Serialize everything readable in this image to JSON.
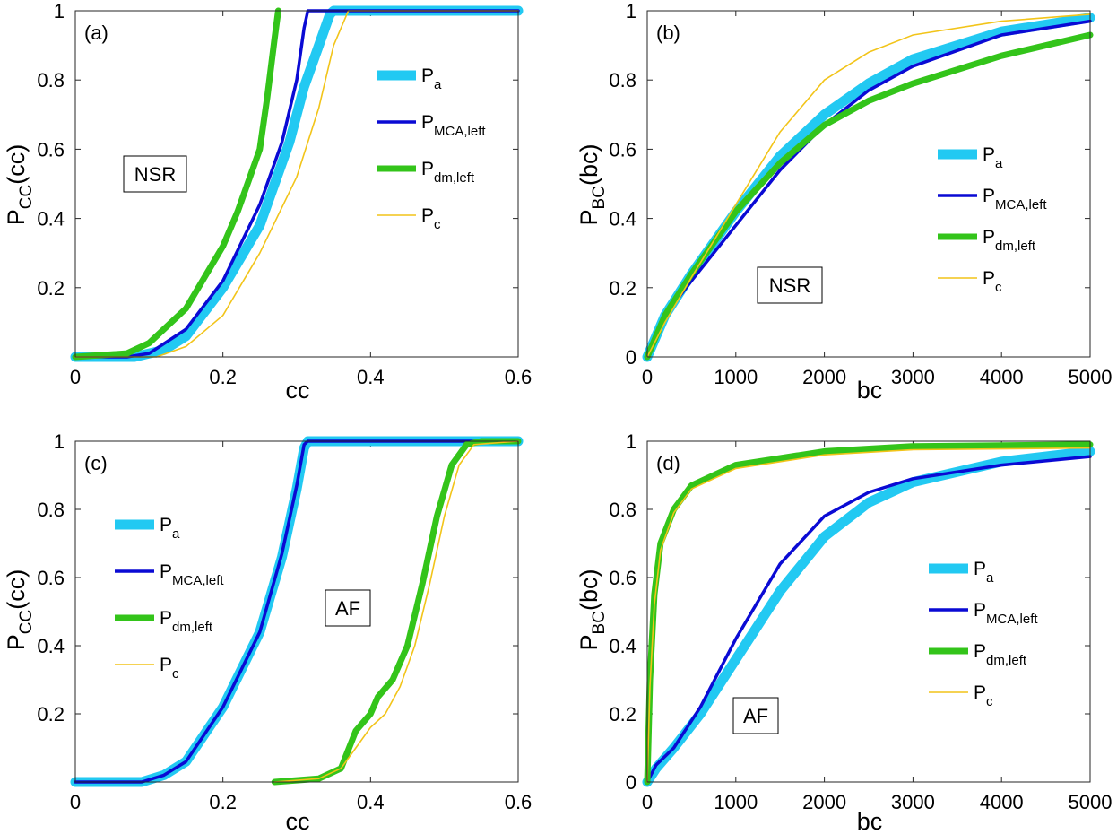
{
  "colors": {
    "Pa": "#22c9f2",
    "Pmca": "#0a0ad4",
    "Pdm": "#33c41a",
    "Pc": "#f2c419",
    "axis": "#262626",
    "background": "#ffffff"
  },
  "chart_data": [
    {
      "type": "line",
      "panel": "(a)",
      "box_label": "NSR",
      "xlabel": "cc",
      "ylabel": "P",
      "ylabel_sub": "CC",
      "ylabel_arg": "(cc)",
      "xlim": [
        0,
        0.6
      ],
      "ylim": [
        0,
        1
      ],
      "xticks": [
        0,
        0.2,
        0.4,
        0.6
      ],
      "xtick_labels": [
        "0",
        "0.2",
        "0.4",
        "0.6"
      ],
      "yticks": [
        0.2,
        0.4,
        0.6,
        0.8,
        1
      ],
      "ytick_labels": [
        "0.2",
        "0.4",
        "0.6",
        "0.8",
        "1"
      ],
      "legend_position": "right-upper",
      "series": [
        {
          "key": "Pa",
          "name": "P",
          "sub": "a",
          "points": [
            [
              0,
              0
            ],
            [
              0.08,
              0
            ],
            [
              0.12,
              0.02
            ],
            [
              0.15,
              0.06
            ],
            [
              0.2,
              0.2
            ],
            [
              0.25,
              0.38
            ],
            [
              0.29,
              0.62
            ],
            [
              0.31,
              0.78
            ],
            [
              0.33,
              0.9
            ],
            [
              0.345,
              0.99
            ],
            [
              0.35,
              1
            ],
            [
              0.6,
              1
            ]
          ]
        },
        {
          "key": "Pmca",
          "name": "P",
          "sub": "MCA,left",
          "points": [
            [
              0,
              0
            ],
            [
              0.07,
              0
            ],
            [
              0.1,
              0.01
            ],
            [
              0.15,
              0.08
            ],
            [
              0.2,
              0.22
            ],
            [
              0.25,
              0.44
            ],
            [
              0.28,
              0.62
            ],
            [
              0.3,
              0.8
            ],
            [
              0.31,
              0.95
            ],
            [
              0.315,
              1
            ],
            [
              0.6,
              1
            ]
          ]
        },
        {
          "key": "Pdm",
          "name": "P",
          "sub": "dm,left",
          "points": [
            [
              0,
              0
            ],
            [
              0.07,
              0.01
            ],
            [
              0.1,
              0.04
            ],
            [
              0.15,
              0.14
            ],
            [
              0.2,
              0.32
            ],
            [
              0.22,
              0.42
            ],
            [
              0.25,
              0.6
            ],
            [
              0.26,
              0.75
            ],
            [
              0.27,
              0.92
            ],
            [
              0.275,
              1
            ]
          ]
        },
        {
          "key": "Pc",
          "name": "P",
          "sub": "c",
          "points": [
            [
              0,
              0
            ],
            [
              0.11,
              0
            ],
            [
              0.15,
              0.03
            ],
            [
              0.2,
              0.12
            ],
            [
              0.25,
              0.3
            ],
            [
              0.3,
              0.52
            ],
            [
              0.33,
              0.72
            ],
            [
              0.35,
              0.9
            ],
            [
              0.37,
              1
            ],
            [
              0.6,
              1
            ]
          ]
        }
      ]
    },
    {
      "type": "line",
      "panel": "(b)",
      "box_label": "NSR",
      "xlabel": "bc",
      "ylabel": "P",
      "ylabel_sub": "BC",
      "ylabel_arg": "(bc)",
      "xlim": [
        0,
        5000
      ],
      "ylim": [
        0,
        1
      ],
      "xticks": [
        0,
        1000,
        2000,
        3000,
        4000,
        5000
      ],
      "xtick_labels": [
        "0",
        "1000",
        "2000",
        "3000",
        "4000",
        "5000"
      ],
      "yticks": [
        0,
        0.2,
        0.4,
        0.6,
        0.8,
        1
      ],
      "ytick_labels": [
        "0",
        "0.2",
        "0.4",
        "0.6",
        "0.8",
        "1"
      ],
      "legend_position": "right-middle",
      "series": [
        {
          "key": "Pa",
          "name": "P",
          "sub": "a",
          "points": [
            [
              0,
              0
            ],
            [
              200,
              0.12
            ],
            [
              500,
              0.24
            ],
            [
              1000,
              0.42
            ],
            [
              1500,
              0.58
            ],
            [
              2000,
              0.7
            ],
            [
              2500,
              0.79
            ],
            [
              3000,
              0.86
            ],
            [
              4000,
              0.94
            ],
            [
              5000,
              0.98
            ]
          ]
        },
        {
          "key": "Pmca",
          "name": "P",
          "sub": "MCA,left",
          "points": [
            [
              0,
              0
            ],
            [
              200,
              0.12
            ],
            [
              500,
              0.22
            ],
            [
              1000,
              0.38
            ],
            [
              1500,
              0.54
            ],
            [
              2000,
              0.67
            ],
            [
              2500,
              0.77
            ],
            [
              3000,
              0.84
            ],
            [
              4000,
              0.93
            ],
            [
              5000,
              0.97
            ]
          ]
        },
        {
          "key": "Pdm",
          "name": "P",
          "sub": "dm,left",
          "points": [
            [
              0,
              0
            ],
            [
              200,
              0.12
            ],
            [
              500,
              0.24
            ],
            [
              1000,
              0.42
            ],
            [
              1500,
              0.56
            ],
            [
              2000,
              0.67
            ],
            [
              2500,
              0.74
            ],
            [
              3000,
              0.79
            ],
            [
              4000,
              0.87
            ],
            [
              5000,
              0.93
            ]
          ]
        },
        {
          "key": "Pc",
          "name": "P",
          "sub": "c",
          "points": [
            [
              0,
              0
            ],
            [
              200,
              0.1
            ],
            [
              500,
              0.23
            ],
            [
              1000,
              0.44
            ],
            [
              1500,
              0.65
            ],
            [
              2000,
              0.8
            ],
            [
              2500,
              0.88
            ],
            [
              3000,
              0.93
            ],
            [
              4000,
              0.97
            ],
            [
              5000,
              0.99
            ]
          ]
        }
      ]
    },
    {
      "type": "line",
      "panel": "(c)",
      "box_label": "AF",
      "xlabel": "cc",
      "ylabel": "P",
      "ylabel_sub": "CC",
      "ylabel_arg": "(cc)",
      "xlim": [
        0,
        0.6
      ],
      "ylim": [
        0,
        1
      ],
      "xticks": [
        0,
        0.2,
        0.4,
        0.6
      ],
      "xtick_labels": [
        "0",
        "0.2",
        "0.4",
        "0.6"
      ],
      "yticks": [
        0.2,
        0.4,
        0.6,
        0.8,
        1
      ],
      "ytick_labels": [
        "0.2",
        "0.4",
        "0.6",
        "0.8",
        "1"
      ],
      "legend_position": "left-middle",
      "series": [
        {
          "key": "Pa",
          "name": "P",
          "sub": "a",
          "points": [
            [
              0,
              0
            ],
            [
              0.09,
              0
            ],
            [
              0.12,
              0.02
            ],
            [
              0.15,
              0.06
            ],
            [
              0.2,
              0.22
            ],
            [
              0.25,
              0.44
            ],
            [
              0.28,
              0.66
            ],
            [
              0.3,
              0.86
            ],
            [
              0.31,
              0.98
            ],
            [
              0.315,
              1
            ],
            [
              0.6,
              1
            ]
          ]
        },
        {
          "key": "Pmca",
          "name": "P",
          "sub": "MCA,left",
          "points": [
            [
              0,
              0
            ],
            [
              0.09,
              0
            ],
            [
              0.12,
              0.02
            ],
            [
              0.15,
              0.06
            ],
            [
              0.2,
              0.22
            ],
            [
              0.25,
              0.44
            ],
            [
              0.28,
              0.67
            ],
            [
              0.3,
              0.87
            ],
            [
              0.31,
              0.99
            ],
            [
              0.315,
              1
            ],
            [
              0.6,
              1
            ]
          ]
        },
        {
          "key": "Pdm",
          "name": "P",
          "sub": "dm,left",
          "points": [
            [
              0.27,
              0
            ],
            [
              0.33,
              0.01
            ],
            [
              0.36,
              0.04
            ],
            [
              0.38,
              0.15
            ],
            [
              0.4,
              0.2
            ],
            [
              0.41,
              0.25
            ],
            [
              0.43,
              0.3
            ],
            [
              0.45,
              0.4
            ],
            [
              0.47,
              0.58
            ],
            [
              0.49,
              0.78
            ],
            [
              0.51,
              0.93
            ],
            [
              0.53,
              0.99
            ],
            [
              0.55,
              1
            ],
            [
              0.6,
              1
            ]
          ]
        },
        {
          "key": "Pc",
          "name": "P",
          "sub": "c",
          "points": [
            [
              0.27,
              0
            ],
            [
              0.33,
              0.01
            ],
            [
              0.36,
              0.04
            ],
            [
              0.38,
              0.1
            ],
            [
              0.4,
              0.16
            ],
            [
              0.42,
              0.2
            ],
            [
              0.44,
              0.28
            ],
            [
              0.46,
              0.4
            ],
            [
              0.48,
              0.58
            ],
            [
              0.5,
              0.78
            ],
            [
              0.52,
              0.93
            ],
            [
              0.54,
              0.99
            ],
            [
              0.6,
              1
            ]
          ]
        }
      ]
    },
    {
      "type": "line",
      "panel": "(d)",
      "box_label": "AF",
      "xlabel": "bc",
      "ylabel": "P",
      "ylabel_sub": "BC",
      "ylabel_arg": "(bc)",
      "xlim": [
        0,
        5000
      ],
      "ylim": [
        0,
        1
      ],
      "xticks": [
        0,
        1000,
        2000,
        3000,
        4000,
        5000
      ],
      "xtick_labels": [
        "0",
        "1000",
        "2000",
        "3000",
        "4000",
        "5000"
      ],
      "yticks": [
        0,
        0.2,
        0.4,
        0.6,
        0.8,
        1
      ],
      "ytick_labels": [
        "0",
        "0.2",
        "0.4",
        "0.6",
        "0.8",
        "1"
      ],
      "legend_position": "right-middle",
      "series": [
        {
          "key": "Pa",
          "name": "P",
          "sub": "a",
          "points": [
            [
              0,
              0
            ],
            [
              100,
              0.04
            ],
            [
              300,
              0.1
            ],
            [
              600,
              0.2
            ],
            [
              1000,
              0.36
            ],
            [
              1500,
              0.56
            ],
            [
              2000,
              0.72
            ],
            [
              2500,
              0.82
            ],
            [
              3000,
              0.88
            ],
            [
              4000,
              0.94
            ],
            [
              5000,
              0.97
            ]
          ]
        },
        {
          "key": "Pmca",
          "name": "P",
          "sub": "MCA,left",
          "points": [
            [
              0,
              0
            ],
            [
              100,
              0.05
            ],
            [
              300,
              0.1
            ],
            [
              600,
              0.22
            ],
            [
              1000,
              0.42
            ],
            [
              1500,
              0.64
            ],
            [
              2000,
              0.78
            ],
            [
              2500,
              0.85
            ],
            [
              3000,
              0.89
            ],
            [
              4000,
              0.93
            ],
            [
              5000,
              0.955
            ]
          ]
        },
        {
          "key": "Pdm",
          "name": "P",
          "sub": "dm,left",
          "points": [
            [
              0,
              0
            ],
            [
              30,
              0.3
            ],
            [
              80,
              0.55
            ],
            [
              150,
              0.7
            ],
            [
              300,
              0.8
            ],
            [
              500,
              0.87
            ],
            [
              1000,
              0.93
            ],
            [
              2000,
              0.97
            ],
            [
              3000,
              0.985
            ],
            [
              5000,
              0.99
            ]
          ]
        },
        {
          "key": "Pc",
          "name": "P",
          "sub": "c",
          "points": [
            [
              0,
              0
            ],
            [
              30,
              0.28
            ],
            [
              80,
              0.52
            ],
            [
              150,
              0.68
            ],
            [
              300,
              0.79
            ],
            [
              500,
              0.86
            ],
            [
              1000,
              0.92
            ],
            [
              2000,
              0.96
            ],
            [
              3000,
              0.975
            ],
            [
              5000,
              0.98
            ]
          ]
        }
      ]
    }
  ]
}
